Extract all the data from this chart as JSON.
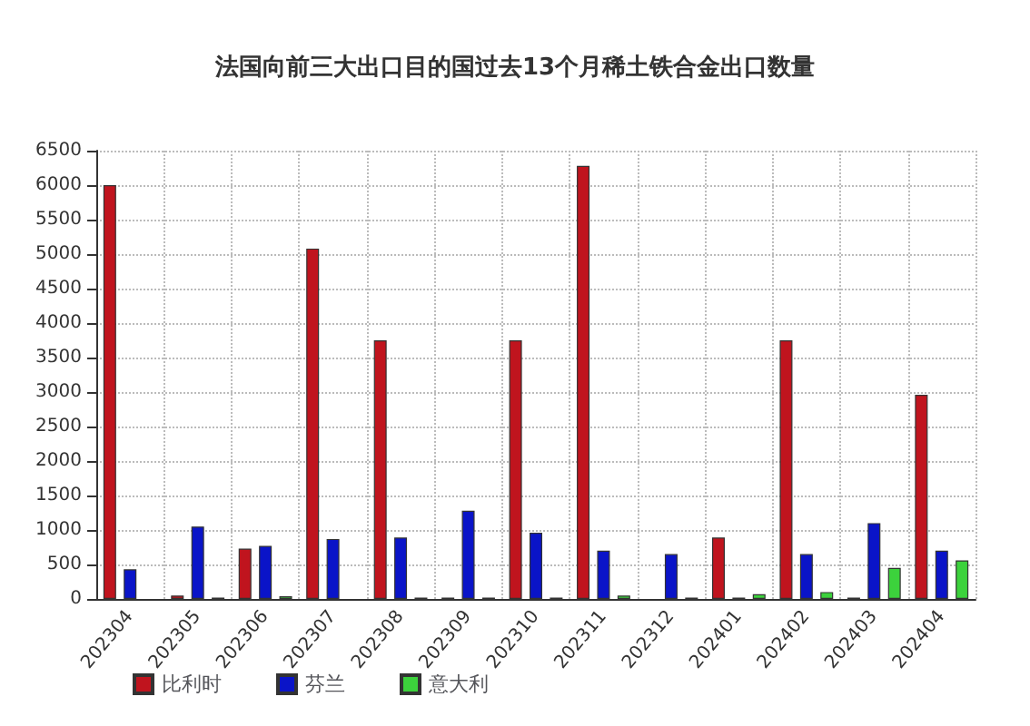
{
  "chart_data": {
    "type": "bar",
    "title": "法国向前三大出口目的国过去13个月稀土铁合金出口数量",
    "categories": [
      "202304",
      "202305",
      "202306",
      "202307",
      "202308",
      "202309",
      "202310",
      "202311",
      "202312",
      "202401",
      "202402",
      "202403",
      "202404"
    ],
    "series": [
      {
        "name": "比利时",
        "color": "#c0141e",
        "values": [
          6000,
          50,
          730,
          5080,
          3750,
          20,
          3750,
          6280,
          null,
          890,
          3750,
          20,
          2960
        ]
      },
      {
        "name": "芬兰",
        "color": "#0a14c8",
        "values": [
          430,
          1050,
          770,
          870,
          890,
          1280,
          960,
          700,
          650,
          20,
          650,
          1100,
          700
        ]
      },
      {
        "name": "意大利",
        "color": "#3cd23c",
        "values": [
          null,
          20,
          40,
          null,
          20,
          20,
          20,
          50,
          20,
          70,
          100,
          450,
          560
        ]
      }
    ],
    "ylim": [
      0,
      6500
    ],
    "yticks": [
      0,
      500,
      1000,
      1500,
      2000,
      2500,
      3000,
      3500,
      4000,
      4500,
      5000,
      5500,
      6000,
      6500
    ],
    "grid": true,
    "legend": "bottom left"
  }
}
